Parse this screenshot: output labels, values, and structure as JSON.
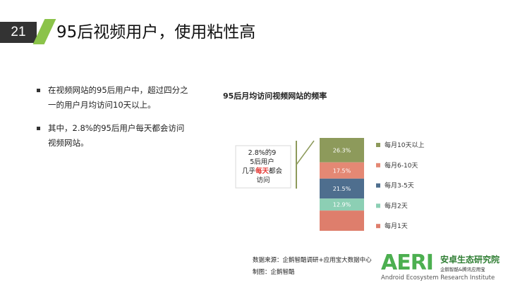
{
  "slide": {
    "page_number": "21",
    "title": "95后视频用户，使用粘性高"
  },
  "bullets": [
    "在视频网站的95后用户中，超过四分之一的用户月均访问10天以上。",
    "其中，2.8%的95后用户每天都会访问视频网站。"
  ],
  "callout": {
    "pre": "2.8%的95后用户几乎",
    "highlight": "每天",
    "post": "都会访问视频网站",
    "highlight_color": "#e53935"
  },
  "chart_data": {
    "type": "bar",
    "stacked": true,
    "title": "95后月均访问视频网站的频率",
    "series": [
      {
        "name": "每月10天以上",
        "value": 26.3,
        "label": "26.3%",
        "color": "#8d9a5b"
      },
      {
        "name": "每月6-10天",
        "value": 17.5,
        "label": "17.5%",
        "color": "#e48874"
      },
      {
        "name": "每月3-5天",
        "value": 21.5,
        "label": "21.5%",
        "color": "#4e6e8e"
      },
      {
        "name": "每月2天",
        "value": 12.9,
        "label": "12.9%",
        "color": "#8ccfb4"
      },
      {
        "name": "每月1天",
        "value": 21.8,
        "label": "",
        "color": "#de7e6c"
      }
    ]
  },
  "footer": {
    "source": "数据来源：企鹅智酷调研+应用宝大数据中心",
    "made_by": "制图：企鹅智酷"
  },
  "logo": {
    "mark": "AERI",
    "cn_name": "安卓生态研究院",
    "cn_sub": "企鹅智酷&腾讯应用宝",
    "en_name": "Android Ecosystem Research Institute"
  },
  "colors": {
    "accent": "#8bc34a",
    "bracket": "#8d9a5b"
  }
}
